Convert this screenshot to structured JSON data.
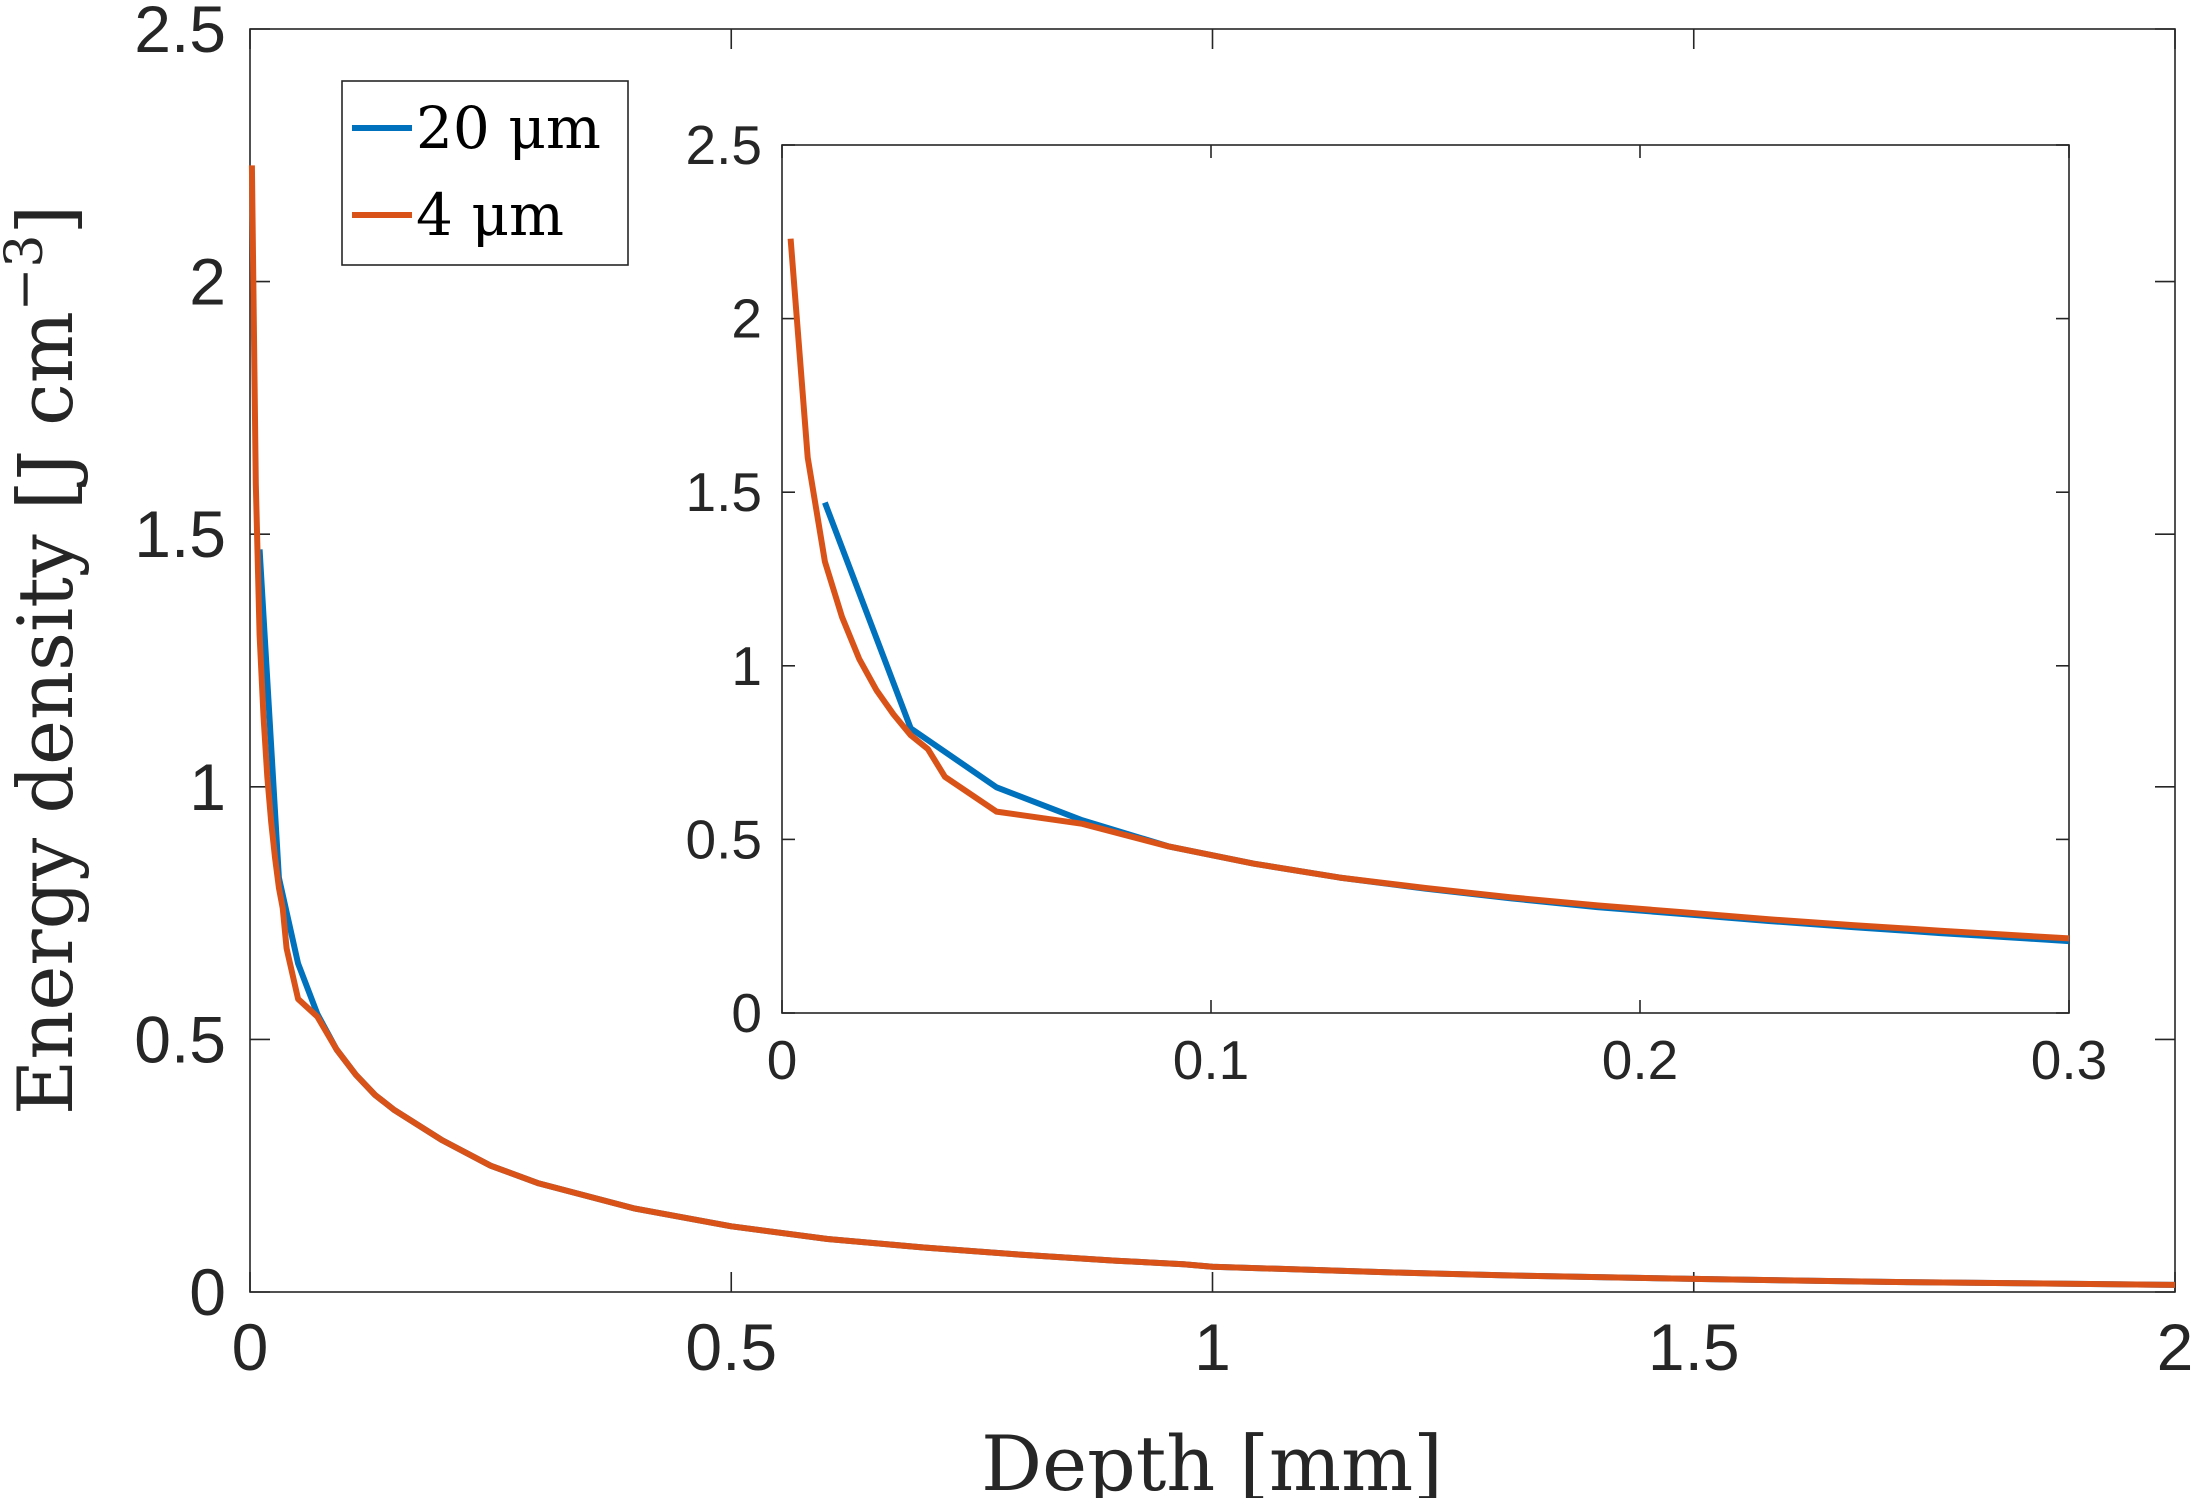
{
  "chart_data": [
    {
      "name": "main",
      "type": "line",
      "xlabel": "Depth [mm]",
      "ylabel": "Energy density [J cm",
      "ylabel_sup": "−3",
      "ylabel_end": "]",
      "xlim": [
        0,
        2
      ],
      "ylim": [
        0,
        2.5
      ],
      "x_ticks": [
        0,
        0.5,
        1,
        1.5,
        2
      ],
      "x_tick_labels": [
        "0",
        "0.5",
        "1",
        "1.5",
        "2"
      ],
      "y_ticks": [
        0,
        0.5,
        1,
        1.5,
        2,
        2.5
      ],
      "y_tick_labels": [
        "0",
        "0.5",
        "1",
        "1.5",
        "2",
        "2.5"
      ],
      "legend": {
        "placement": "top-left",
        "entries": [
          "20 μm",
          "4 μm"
        ]
      },
      "series": [
        {
          "name": "20 μm",
          "color": "#0072BD",
          "x": [
            0.01,
            0.03,
            0.05,
            0.07,
            0.09,
            0.11,
            0.13,
            0.15,
            0.2,
            0.25,
            0.3,
            0.4,
            0.5,
            0.6,
            0.7,
            0.8,
            0.9,
            0.97,
            1.0,
            1.1,
            1.2,
            1.3,
            1.5,
            1.7,
            2.0
          ],
          "values": [
            1.47,
            0.82,
            0.65,
            0.55,
            0.48,
            0.43,
            0.39,
            0.36,
            0.3,
            0.25,
            0.215,
            0.165,
            0.13,
            0.105,
            0.088,
            0.074,
            0.062,
            0.055,
            0.05,
            0.044,
            0.038,
            0.033,
            0.026,
            0.02,
            0.014
          ]
        },
        {
          "name": "4 μm",
          "color": "#D95319",
          "x": [
            0.002,
            0.006,
            0.01,
            0.014,
            0.018,
            0.022,
            0.026,
            0.03,
            0.034,
            0.038,
            0.05,
            0.07,
            0.09,
            0.11,
            0.13,
            0.15,
            0.2,
            0.25,
            0.3,
            0.4,
            0.5,
            0.6,
            0.7,
            0.8,
            0.9,
            0.97,
            1.0,
            1.1,
            1.2,
            1.3,
            1.5,
            1.7,
            2.0
          ],
          "values": [
            2.23,
            1.6,
            1.3,
            1.14,
            1.02,
            0.93,
            0.86,
            0.8,
            0.76,
            0.68,
            0.58,
            0.545,
            0.48,
            0.43,
            0.39,
            0.36,
            0.3,
            0.25,
            0.215,
            0.165,
            0.13,
            0.105,
            0.088,
            0.074,
            0.062,
            0.055,
            0.05,
            0.044,
            0.038,
            0.033,
            0.026,
            0.02,
            0.014
          ]
        }
      ]
    },
    {
      "name": "inset",
      "type": "line",
      "xlim": [
        0,
        0.3
      ],
      "ylim": [
        0,
        2.5
      ],
      "x_ticks": [
        0,
        0.1,
        0.2,
        0.3
      ],
      "x_tick_labels": [
        "0",
        "0.1",
        "0.2",
        "0.3"
      ],
      "y_ticks": [
        0,
        0.5,
        1,
        1.5,
        2,
        2.5
      ],
      "y_tick_labels": [
        "0",
        "0.5",
        "1",
        "1.5",
        "2",
        "2.5"
      ],
      "series": [
        {
          "name": "20 μm",
          "color": "#0072BD",
          "x": [
            0.01,
            0.03,
            0.05,
            0.07,
            0.09,
            0.11,
            0.13,
            0.15,
            0.17,
            0.19,
            0.21,
            0.23,
            0.25,
            0.27,
            0.29,
            0.3
          ],
          "values": [
            1.47,
            0.82,
            0.65,
            0.555,
            0.48,
            0.43,
            0.39,
            0.358,
            0.33,
            0.305,
            0.285,
            0.265,
            0.247,
            0.23,
            0.215,
            0.207
          ]
        },
        {
          "name": "4 μm",
          "color": "#D95319",
          "x": [
            0.002,
            0.006,
            0.01,
            0.014,
            0.018,
            0.022,
            0.026,
            0.03,
            0.034,
            0.038,
            0.05,
            0.07,
            0.09,
            0.11,
            0.13,
            0.15,
            0.17,
            0.19,
            0.21,
            0.23,
            0.25,
            0.27,
            0.29,
            0.3
          ],
          "values": [
            2.23,
            1.6,
            1.3,
            1.14,
            1.02,
            0.93,
            0.86,
            0.8,
            0.76,
            0.68,
            0.58,
            0.545,
            0.48,
            0.43,
            0.39,
            0.36,
            0.333,
            0.31,
            0.29,
            0.27,
            0.253,
            0.237,
            0.222,
            0.215
          ]
        }
      ]
    }
  ]
}
